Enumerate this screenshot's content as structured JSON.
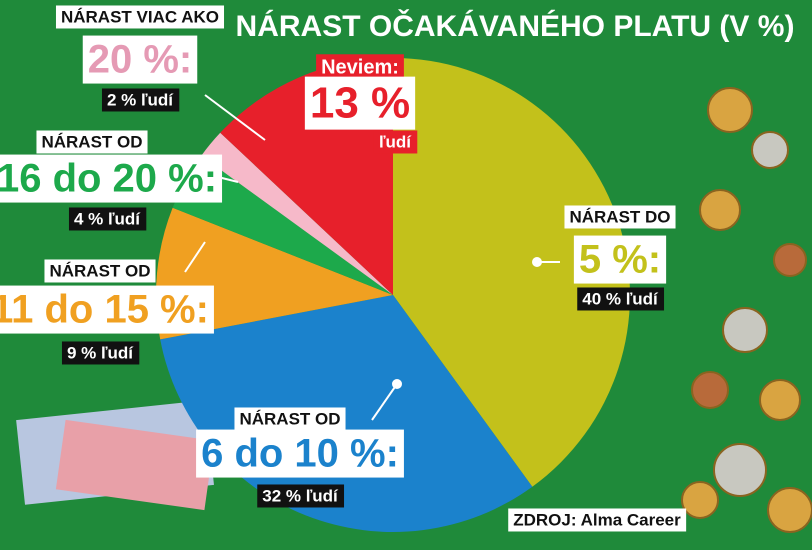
{
  "chart_data": {
    "type": "pie",
    "title": "NÁRAST OČAKÁVANÉHO PLATU (V %)",
    "category_headers": [
      "NÁRAST DO",
      "NÁRAST OD",
      "NÁRAST OD",
      "NÁRAST OD",
      "NÁRAST VIAC AKO",
      null
    ],
    "categories": [
      "5 %:",
      "6 do 10 %:",
      "11 do 15 %:",
      "16 do 20 %:",
      "20 %:",
      "Neviem:"
    ],
    "values": [
      40,
      32,
      9,
      4,
      2,
      13
    ],
    "value_labels": [
      "40 % ľudí",
      "32 % ľudí",
      "9 % ľudí",
      "4 % ľudí",
      "2 % ľudí",
      "13 %"
    ],
    "colors": [
      "#c3c11b",
      "#1b82cc",
      "#f0a021",
      "#1da94b",
      "#f6b9c9",
      "#e7202b"
    ],
    "note": "ľudí",
    "source": "ZDROJ: Alma Career"
  }
}
